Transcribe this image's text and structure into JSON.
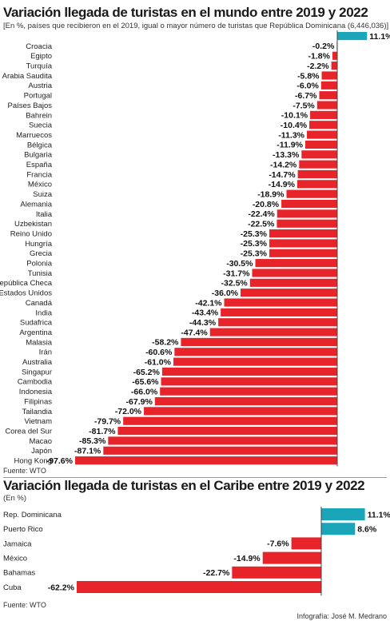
{
  "colors": {
    "negative": "#e8242b",
    "positive": "#1aa5b8",
    "axis": "#444444"
  },
  "credit": "Infografía: José M. Medrano",
  "chart_data": [
    {
      "type": "bar",
      "orientation": "horizontal",
      "title": "Variación llegada de turistas en el mundo entre 2019 y 2022",
      "subtitle": "[En %, países que recibieron en el 2019,  igual o mayor número de turistas  que República Dominicana (6,446,036)]",
      "source": "Fuente: WTO",
      "categories": [
        "",
        "Croacia",
        "Egipto",
        "Turquía",
        "Arabia Saudita",
        "Austria",
        "Portugal",
        "Países Bajos",
        "Bahrein",
        "Suecia",
        "Marruecos",
        "Bélgica",
        "Bulgaria",
        "España",
        "Francia",
        "México",
        "Suiza",
        "Alemania",
        "Italia",
        "Uzbekistan",
        "Reino Unido",
        "Hungría",
        "Grecia",
        "Polonia",
        "Tunisia",
        "República Checa",
        "Estados Unidos",
        "Canadá",
        "India",
        "Sudafrica",
        "Argentina",
        "Malasia",
        "Irán",
        "Australia",
        "Singapur",
        "Cambodia",
        "Indonesia",
        "Filipinas",
        "Tailandia",
        "Vietnam",
        "Corea del Sur",
        "Macao",
        "Japón",
        "Hong Kong"
      ],
      "values": [
        11.1,
        -0.2,
        -1.8,
        -2.2,
        -5.8,
        -6.0,
        -6.7,
        -7.5,
        -10.1,
        -10.4,
        -11.3,
        -11.9,
        -13.3,
        -14.2,
        -14.7,
        -14.9,
        -18.9,
        -20.8,
        -22.4,
        -22.5,
        -25.3,
        -25.3,
        -25.3,
        -30.5,
        -31.7,
        -32.5,
        -36.0,
        -42.1,
        -43.4,
        -44.3,
        -47.4,
        -58.2,
        -60.6,
        -61.0,
        -65.2,
        -65.6,
        -66.0,
        -67.9,
        -72.0,
        -79.7,
        -81.7,
        -85.3,
        -87.1,
        -97.6
      ],
      "labels": [
        "11.1%",
        "-0.2%",
        "-1.8%",
        "-2.2%",
        "-5.8%",
        "-6.0%",
        "-6.7%",
        "-7.5%",
        "-10.1%",
        "-10.4%",
        "-11.3%",
        "-11.9%",
        "-13.3%",
        "-14.2%",
        "-14.7%",
        "-14.9%",
        "-18.9%",
        "-20.8%",
        "-22.4%",
        "-22.5%",
        "-25.3%",
        "-25.3%",
        "-25.3%",
        "-30.5%",
        "-31.7%",
        "-32.5%",
        "-36.0%",
        "-42.1%",
        "-43.4%",
        "-44.3%",
        "-47.4%",
        "-58.2%",
        "-60.6%",
        "-61.0%",
        "-65.2%",
        "-65.6%",
        "-66.0%",
        "-67.9%",
        "-72.0%",
        "-79.7%",
        "-81.7%",
        "-85.3%",
        "-87.1%",
        "-97.6%"
      ]
    },
    {
      "type": "bar",
      "orientation": "horizontal",
      "title": "Variación llegada de turistas en el Caribe entre 2019 y 2022",
      "subtitle": "(En %)",
      "source": "Fuente: WTO",
      "categories": [
        "Rep. Dominicana",
        "Puerto Rico",
        "Jamaica",
        "México",
        "Bahamas",
        "Cuba"
      ],
      "values": [
        11.1,
        8.6,
        -7.6,
        -14.9,
        -22.7,
        -62.2
      ],
      "labels": [
        "11.1%",
        "8.6%",
        "-7.6%",
        "-14.9%",
        "-22.7%",
        "-62.2%"
      ]
    }
  ]
}
